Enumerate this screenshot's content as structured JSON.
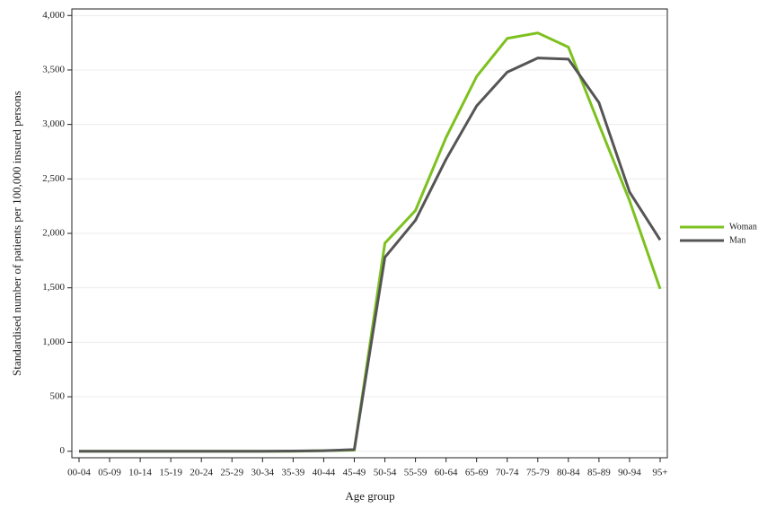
{
  "chart_data": {
    "type": "line",
    "x_label": "Age group",
    "y_label": "Standardised number of patients per 100,000 insured persons",
    "categories": [
      "00-04",
      "05-09",
      "10-14",
      "15-19",
      "20-24",
      "25-29",
      "30-34",
      "35-39",
      "40-44",
      "45-49",
      "50-54",
      "55-59",
      "60-64",
      "65-69",
      "70-74",
      "75-79",
      "80-84",
      "85-89",
      "90-94",
      "95+"
    ],
    "series": [
      {
        "name": "Woman",
        "color": "#7dc11f",
        "values": [
          0,
          0,
          0,
          0,
          0,
          0,
          0,
          0,
          5,
          10,
          1910,
          2210,
          2880,
          3440,
          3790,
          3840,
          3710,
          3000,
          2300,
          1490
        ]
      },
      {
        "name": "Man",
        "color": "#555555",
        "values": [
          0,
          0,
          0,
          0,
          0,
          0,
          0,
          2,
          5,
          15,
          1780,
          2120,
          2680,
          3170,
          3480,
          3610,
          3600,
          3200,
          2380,
          1940
        ]
      }
    ],
    "ylim": [
      -60,
      4060
    ],
    "yticks": [
      0,
      500,
      {
        "value": 1000,
        "label": "1,000"
      },
      {
        "value": 1500,
        "label": "1,500"
      },
      {
        "value": 2000,
        "label": "2,000"
      },
      {
        "value": 2500,
        "label": "2,500"
      },
      {
        "value": 3000,
        "label": "3,000"
      },
      {
        "value": 3500,
        "label": "3,500"
      },
      {
        "value": 4000,
        "label": "4,000"
      }
    ],
    "grid": true,
    "legend": "right"
  }
}
